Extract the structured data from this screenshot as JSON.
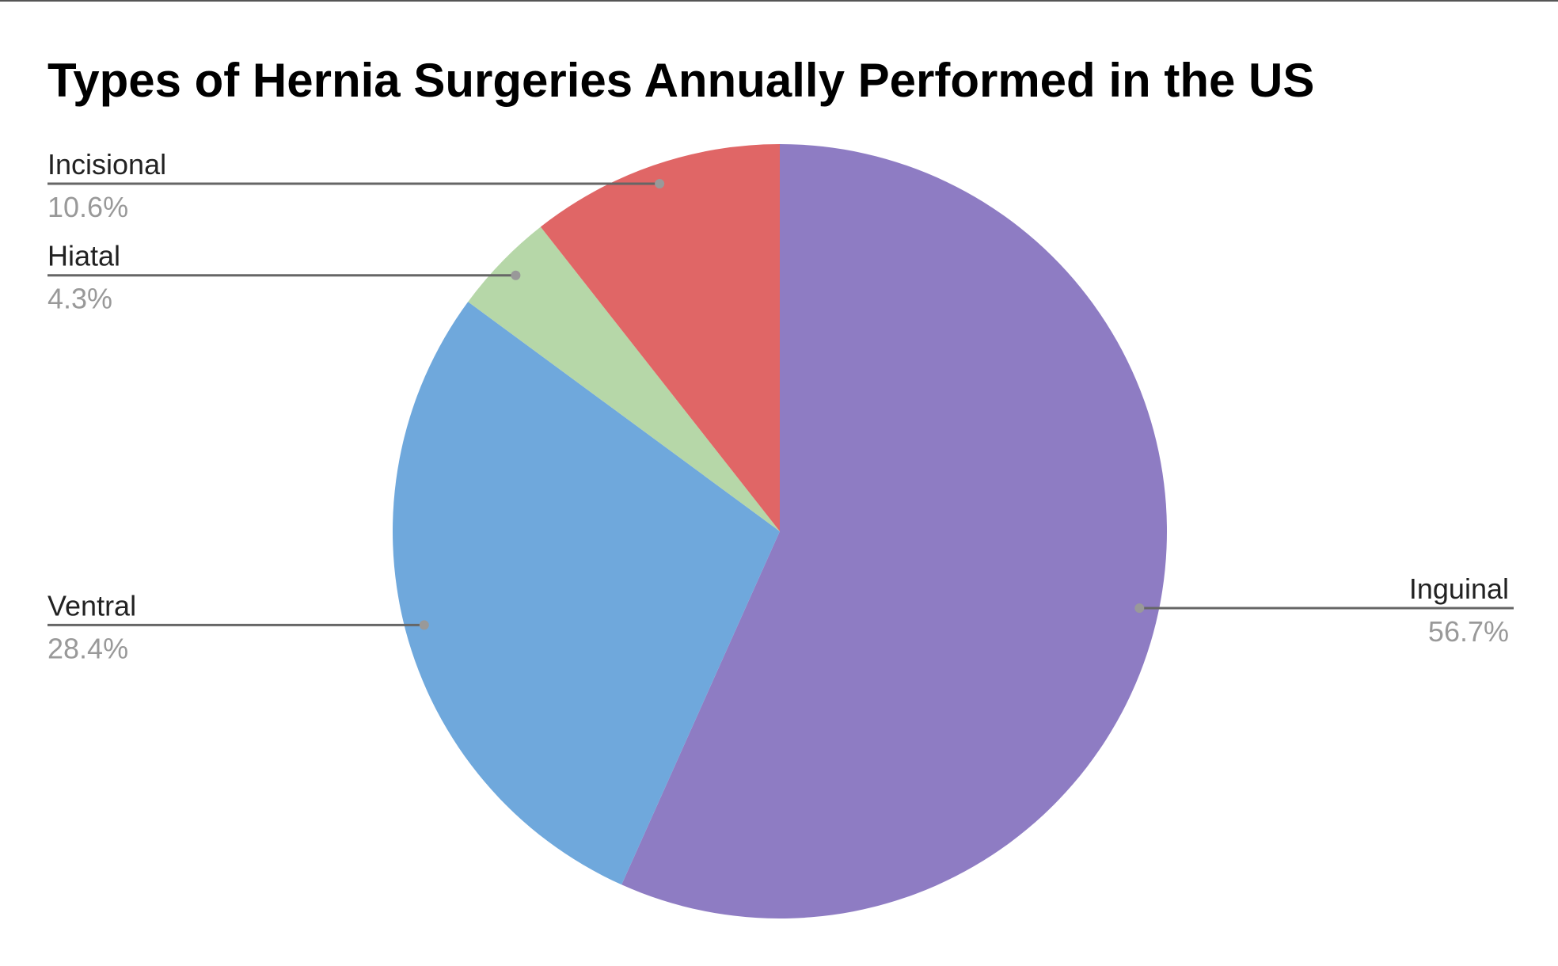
{
  "chart_data": {
    "type": "pie",
    "title": "Types of Hernia Surgeries Annually Performed in the US",
    "categories": [
      "Inguinal",
      "Ventral",
      "Hiatal",
      "Incisional"
    ],
    "values": [
      56.7,
      28.4,
      4.3,
      10.6
    ],
    "value_labels": [
      "56.7%",
      "28.4%",
      "4.3%",
      "10.6%"
    ],
    "colors": [
      "#8e7cc3",
      "#6fa8dc",
      "#b6d7a8",
      "#e06666"
    ]
  }
}
